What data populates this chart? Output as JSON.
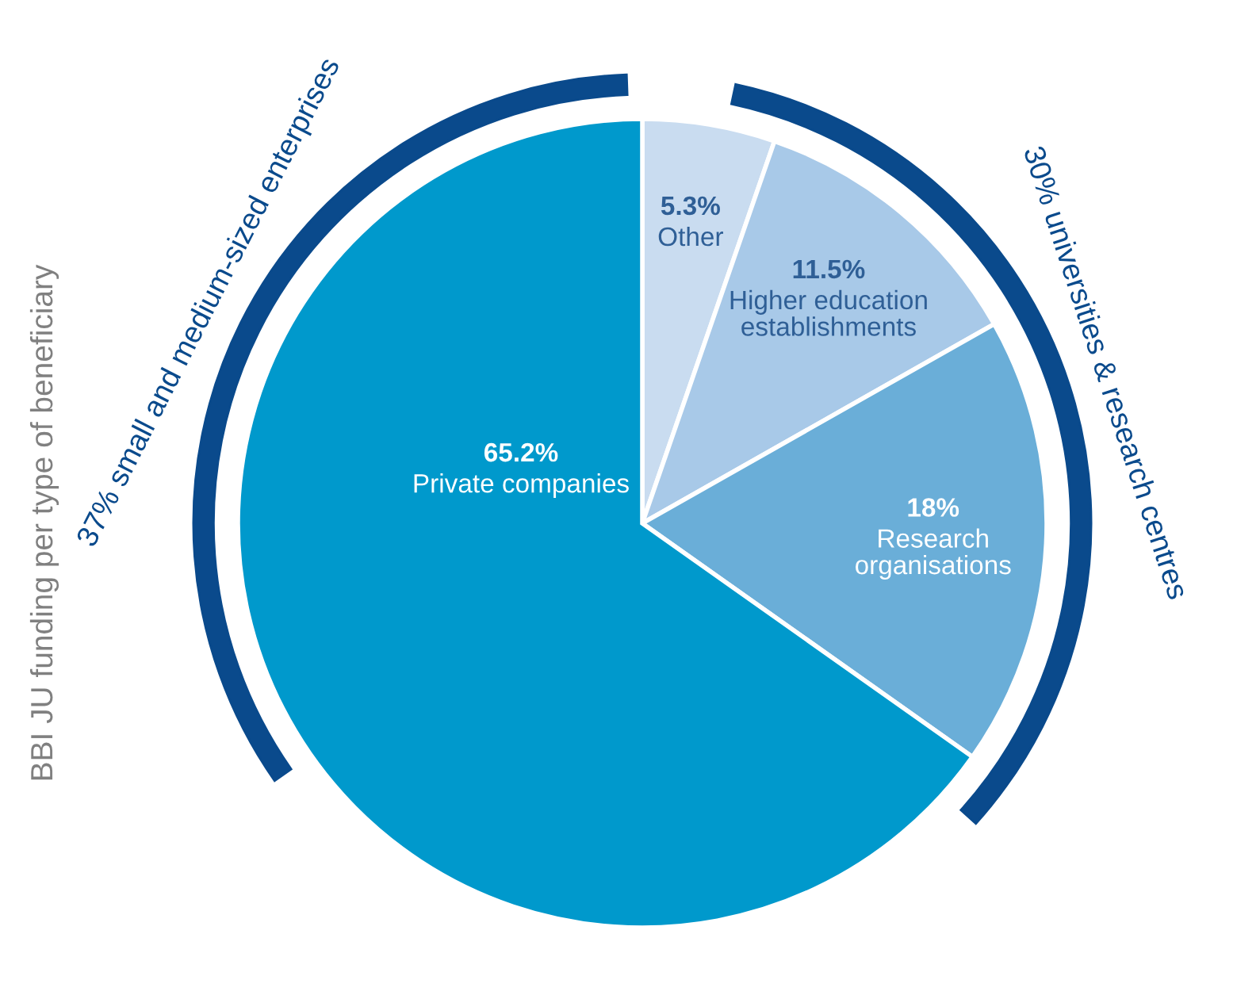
{
  "chart_data": {
    "type": "pie",
    "title": "BBI JU funding per type of beneficiary",
    "categories": [
      "Other",
      "Higher education\nestablishments",
      "Research\norganisations",
      "Private companies"
    ],
    "values": [
      5.3,
      11.5,
      18,
      65.2
    ],
    "colors": [
      "#c9dcf0",
      "#a8c9e8",
      "#6aaed8",
      "#0099cc"
    ],
    "value_labels": [
      "5.3%",
      "11.5%",
      "18%",
      "65.2%"
    ],
    "annotations": [
      "37% small and medium-sized enterprises",
      "30% universities & research centres"
    ]
  }
}
